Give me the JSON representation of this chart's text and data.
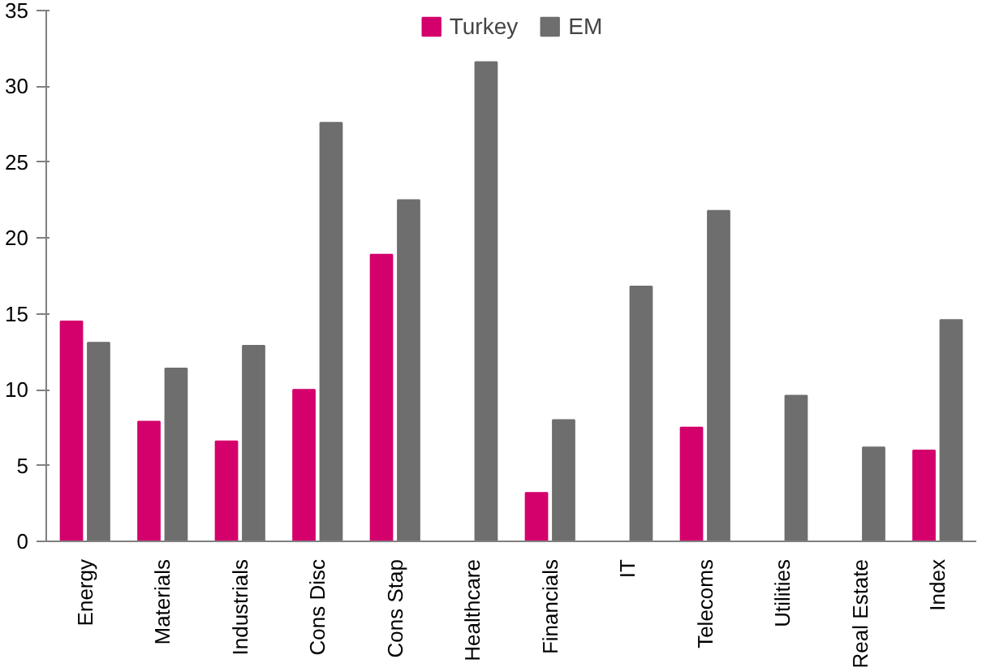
{
  "chart_data": {
    "type": "bar",
    "categories": [
      "Energy",
      "Materials",
      "Industrials",
      "Cons Disc",
      "Cons Stap",
      "Healthcare",
      "Financials",
      "IT",
      "Telecoms",
      "Utilities",
      "Real Estate",
      "Index"
    ],
    "series": [
      {
        "name": "Turkey",
        "color": "#d4006c",
        "values": [
          14.5,
          7.9,
          6.6,
          10.0,
          18.9,
          null,
          3.2,
          null,
          7.5,
          null,
          null,
          6.0
        ]
      },
      {
        "name": "EM",
        "color": "#6e6e6e",
        "values": [
          13.1,
          11.4,
          12.9,
          27.6,
          22.5,
          31.6,
          8.0,
          16.8,
          21.8,
          9.6,
          6.2,
          14.6
        ]
      }
    ],
    "ylim": [
      0,
      35
    ],
    "yticks": [
      0,
      5,
      10,
      15,
      20,
      25,
      30,
      35
    ],
    "grid": false,
    "legend": "top"
  }
}
